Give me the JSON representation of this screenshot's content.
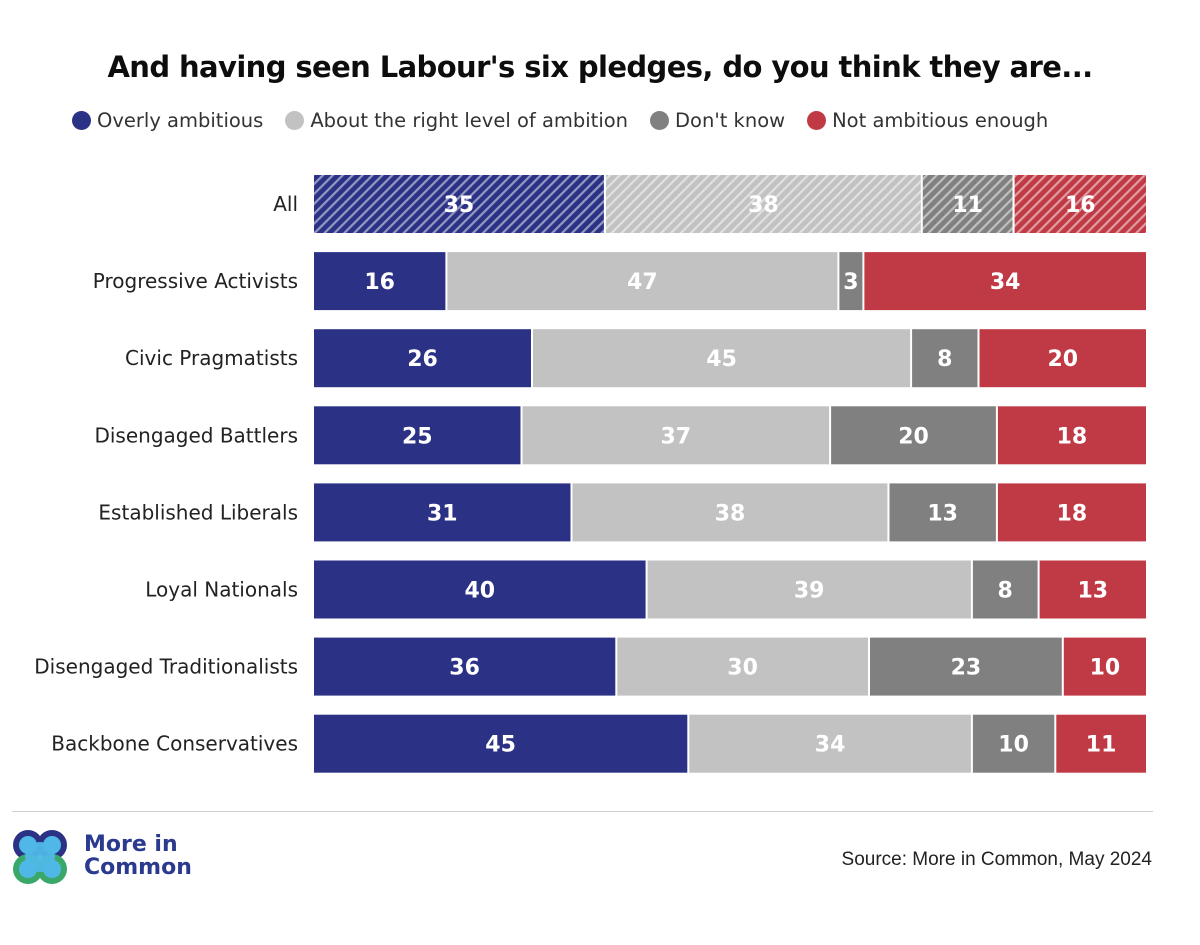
{
  "chart_data": {
    "type": "bar",
    "orientation": "horizontal",
    "stacked": true,
    "title": "And having seen Labour's six pledges, do you think they are...",
    "categories": [
      "All",
      "Progressive Activists",
      "Civic Pragmatists",
      "Disengaged Battlers",
      "Established Liberals",
      "Loyal Nationals",
      "Disengaged Traditionalists",
      "Backbone Conservatives"
    ],
    "series": [
      {
        "name": "Overly ambitious",
        "color": "#2b3285",
        "values": [
          35,
          16,
          26,
          25,
          31,
          40,
          36,
          45
        ]
      },
      {
        "name": "About the right level of ambition",
        "color": "#c2c2c2",
        "values": [
          38,
          47,
          45,
          37,
          38,
          39,
          30,
          34
        ]
      },
      {
        "name": "Don't know",
        "color": "#808080",
        "values": [
          11,
          3,
          8,
          20,
          13,
          8,
          23,
          10
        ]
      },
      {
        "name": "Not ambitious enough",
        "color": "#c03a45",
        "values": [
          16,
          34,
          20,
          18,
          18,
          13,
          10,
          11
        ]
      }
    ],
    "hatched_rows": [
      "All"
    ],
    "legend_position": "top",
    "grid": false
  },
  "footer": {
    "brand_line1": "More in",
    "brand_line2": "Common",
    "source": "Source: More in Common, May 2024"
  },
  "colors": {
    "brand": "#2a3a8f",
    "logo_dark": "#2b3285",
    "logo_light": "#4fb8e6",
    "logo_green": "#3aa86a"
  }
}
